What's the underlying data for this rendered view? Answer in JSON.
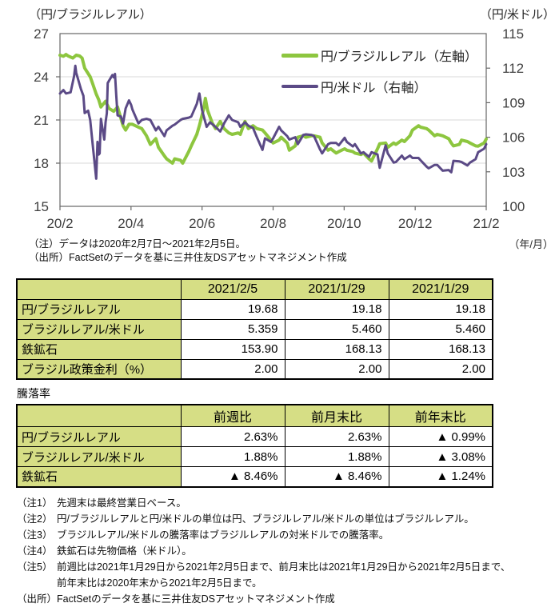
{
  "chart": {
    "left_axis_title": "（円/ブラジルレアル）",
    "right_axis_title": "（円/米ドル）",
    "x_unit_label": "（年/月）",
    "colors": {
      "jpy_brl_line": "#8dc63f",
      "jpy_usd_line": "#5b4a86",
      "gridline": "#d9d9d9",
      "frame": "#666666",
      "tick_text": "#3f3f3f",
      "table_header_bg": "#d6de85"
    }
  },
  "chart_data": {
    "type": "line",
    "title": "",
    "x_ticks": [
      "20/2",
      "20/4",
      "20/6",
      "20/8",
      "20/10",
      "20/12",
      "21/2"
    ],
    "x_range_note": "データは2020年2月7日～2021年2月5日",
    "left_axis": {
      "label": "（円/ブラジルレアル）",
      "min": 15,
      "max": 27,
      "ticks": [
        27,
        24,
        21,
        18,
        15
      ]
    },
    "right_axis": {
      "label": "（円/米ドル）",
      "min": 100,
      "max": 115,
      "ticks": [
        115,
        112,
        109,
        106,
        103,
        100
      ]
    },
    "grid": "horizontal-at-left-ticks-24-21-18",
    "legend_position": "inside-top-right",
    "series": [
      {
        "name": "円/ブラジルレアル（左軸）",
        "axis": "left",
        "color": "#8dc63f",
        "width": 4,
        "points": [
          [
            0,
            25.5
          ],
          [
            0.008,
            25.42
          ],
          [
            0.014,
            25.55
          ],
          [
            0.019,
            25.45
          ],
          [
            0.03,
            25.3
          ],
          [
            0.038,
            25.5
          ],
          [
            0.046,
            25.45
          ],
          [
            0.052,
            25.3
          ],
          [
            0.058,
            24.6
          ],
          [
            0.071,
            24.0
          ],
          [
            0.077,
            23.5
          ],
          [
            0.085,
            22.8
          ],
          [
            0.091,
            22.4
          ],
          [
            0.096,
            21.9
          ],
          [
            0.107,
            22.3
          ],
          [
            0.115,
            21.8
          ],
          [
            0.126,
            21.6
          ],
          [
            0.135,
            21.9
          ],
          [
            0.148,
            20.6
          ],
          [
            0.154,
            20.3
          ],
          [
            0.162,
            20.7
          ],
          [
            0.17,
            20.7
          ],
          [
            0.184,
            20.5
          ],
          [
            0.192,
            20.4
          ],
          [
            0.203,
            19.9
          ],
          [
            0.212,
            19.3
          ],
          [
            0.225,
            19.7
          ],
          [
            0.231,
            19.1
          ],
          [
            0.245,
            18.5
          ],
          [
            0.25,
            18.3
          ],
          [
            0.264,
            18.0
          ],
          [
            0.269,
            18.3
          ],
          [
            0.283,
            18.2
          ],
          [
            0.288,
            18.0
          ],
          [
            0.302,
            18.8
          ],
          [
            0.308,
            19.2
          ],
          [
            0.321,
            20.0
          ],
          [
            0.327,
            20.6
          ],
          [
            0.338,
            21.9
          ],
          [
            0.341,
            22.5
          ],
          [
            0.346,
            21.7
          ],
          [
            0.357,
            20.8
          ],
          [
            0.365,
            20.4
          ],
          [
            0.376,
            20.9
          ],
          [
            0.385,
            20.4
          ],
          [
            0.396,
            20.1
          ],
          [
            0.404,
            20.0
          ],
          [
            0.418,
            20.1
          ],
          [
            0.423,
            20.0
          ],
          [
            0.434,
            20.9
          ],
          [
            0.442,
            20.4
          ],
          [
            0.453,
            20.6
          ],
          [
            0.462,
            20.4
          ],
          [
            0.475,
            20.3
          ],
          [
            0.481,
            20.1
          ],
          [
            0.495,
            19.6
          ],
          [
            0.5,
            19.4
          ],
          [
            0.514,
            19.6
          ],
          [
            0.519,
            19.8
          ],
          [
            0.533,
            19.4
          ],
          [
            0.538,
            18.9
          ],
          [
            0.552,
            19.2
          ],
          [
            0.558,
            19.8
          ],
          [
            0.571,
            19.9
          ],
          [
            0.577,
            19.8
          ],
          [
            0.59,
            19.9
          ],
          [
            0.596,
            19.9
          ],
          [
            0.61,
            19.8
          ],
          [
            0.615,
            19.4
          ],
          [
            0.629,
            18.9
          ],
          [
            0.635,
            19.0
          ],
          [
            0.648,
            18.7
          ],
          [
            0.654,
            18.8
          ],
          [
            0.668,
            19.0
          ],
          [
            0.673,
            18.9
          ],
          [
            0.687,
            18.8
          ],
          [
            0.692,
            18.7
          ],
          [
            0.706,
            18.6
          ],
          [
            0.712,
            18.7
          ],
          [
            0.725,
            18.3
          ],
          [
            0.731,
            18.15
          ],
          [
            0.745,
            19.0
          ],
          [
            0.75,
            19.35
          ],
          [
            0.764,
            19.4
          ],
          [
            0.769,
            19.1
          ],
          [
            0.783,
            19.4
          ],
          [
            0.788,
            19.3
          ],
          [
            0.802,
            19.6
          ],
          [
            0.808,
            19.5
          ],
          [
            0.821,
            19.9
          ],
          [
            0.827,
            20.3
          ],
          [
            0.841,
            20.6
          ],
          [
            0.846,
            20.5
          ],
          [
            0.86,
            20.4
          ],
          [
            0.865,
            20.3
          ],
          [
            0.879,
            19.9
          ],
          [
            0.885,
            20.0
          ],
          [
            0.898,
            19.9
          ],
          [
            0.912,
            19.7
          ],
          [
            0.918,
            19.4
          ],
          [
            0.923,
            19.2
          ],
          [
            0.937,
            19.3
          ],
          [
            0.942,
            19.6
          ],
          [
            0.956,
            19.5
          ],
          [
            0.962,
            19.4
          ],
          [
            0.975,
            19.2
          ],
          [
            0.981,
            19.18
          ],
          [
            0.995,
            19.4
          ],
          [
            1,
            19.68
          ]
        ]
      },
      {
        "name": "円/米ドル（右軸）",
        "axis": "right",
        "color": "#5b4a86",
        "width": 3,
        "points": [
          [
            0,
            109.8
          ],
          [
            0.008,
            110.1
          ],
          [
            0.014,
            109.8
          ],
          [
            0.025,
            109.9
          ],
          [
            0.033,
            111.3
          ],
          [
            0.036,
            112.2
          ],
          [
            0.038,
            111.6
          ],
          [
            0.049,
            110.2
          ],
          [
            0.055,
            109.6
          ],
          [
            0.058,
            108.1
          ],
          [
            0.066,
            108.3
          ],
          [
            0.071,
            107.5
          ],
          [
            0.077,
            105.3
          ],
          [
            0.085,
            102.4
          ],
          [
            0.088,
            105.6
          ],
          [
            0.091,
            104.5
          ],
          [
            0.093,
            104.6
          ],
          [
            0.096,
            107.6
          ],
          [
            0.104,
            105.8
          ],
          [
            0.107,
            107.3
          ],
          [
            0.11,
            108.1
          ],
          [
            0.112,
            110.7
          ],
          [
            0.115,
            110.9
          ],
          [
            0.123,
            111.4
          ],
          [
            0.126,
            111.2
          ],
          [
            0.129,
            111.5
          ],
          [
            0.132,
            109.6
          ],
          [
            0.135,
            107.9
          ],
          [
            0.143,
            107.8
          ],
          [
            0.148,
            107.2
          ],
          [
            0.154,
            108.5
          ],
          [
            0.162,
            109.2
          ],
          [
            0.167,
            108.8
          ],
          [
            0.17,
            108.4
          ],
          [
            0.184,
            107.2
          ],
          [
            0.192,
            107.5
          ],
          [
            0.203,
            107.6
          ],
          [
            0.212,
            107.5
          ],
          [
            0.225,
            106.6
          ],
          [
            0.231,
            106.9
          ],
          [
            0.245,
            106.1
          ],
          [
            0.25,
            106.6
          ],
          [
            0.264,
            107.0
          ],
          [
            0.269,
            107.1
          ],
          [
            0.283,
            107.5
          ],
          [
            0.288,
            107.6
          ],
          [
            0.302,
            107.7
          ],
          [
            0.308,
            107.8
          ],
          [
            0.321,
            108.9
          ],
          [
            0.327,
            109.8
          ],
          [
            0.333,
            108.4
          ],
          [
            0.338,
            107.7
          ],
          [
            0.344,
            106.9
          ],
          [
            0.352,
            107.3
          ],
          [
            0.365,
            106.9
          ],
          [
            0.376,
            106.5
          ],
          [
            0.385,
            107.2
          ],
          [
            0.396,
            107.9
          ],
          [
            0.404,
            107.5
          ],
          [
            0.418,
            107.3
          ],
          [
            0.423,
            106.9
          ],
          [
            0.434,
            107.3
          ],
          [
            0.442,
            107.0
          ],
          [
            0.453,
            106.8
          ],
          [
            0.462,
            106.0
          ],
          [
            0.475,
            104.9
          ],
          [
            0.481,
            105.9
          ],
          [
            0.495,
            105.6
          ],
          [
            0.5,
            105.9
          ],
          [
            0.514,
            106.9
          ],
          [
            0.519,
            106.6
          ],
          [
            0.533,
            106.1
          ],
          [
            0.538,
            105.8
          ],
          [
            0.552,
            106.0
          ],
          [
            0.558,
            105.4
          ],
          [
            0.571,
            106.2
          ],
          [
            0.577,
            106.25
          ],
          [
            0.59,
            106.2
          ],
          [
            0.596,
            106.1
          ],
          [
            0.61,
            104.95
          ],
          [
            0.615,
            104.6
          ],
          [
            0.629,
            105.4
          ],
          [
            0.635,
            105.5
          ],
          [
            0.648,
            105.5
          ],
          [
            0.654,
            105.3
          ],
          [
            0.668,
            105.95
          ],
          [
            0.673,
            105.6
          ],
          [
            0.687,
            105.2
          ],
          [
            0.692,
            105.4
          ],
          [
            0.706,
            104.6
          ],
          [
            0.712,
            104.7
          ],
          [
            0.725,
            104.3
          ],
          [
            0.731,
            104.7
          ],
          [
            0.745,
            104.5
          ],
          [
            0.75,
            103.35
          ],
          [
            0.764,
            105.3
          ],
          [
            0.769,
            104.6
          ],
          [
            0.783,
            103.8
          ],
          [
            0.788,
            103.85
          ],
          [
            0.802,
            104.4
          ],
          [
            0.808,
            104.1
          ],
          [
            0.821,
            104.4
          ],
          [
            0.827,
            104.2
          ],
          [
            0.841,
            104.2
          ],
          [
            0.846,
            104.0
          ],
          [
            0.86,
            103.45
          ],
          [
            0.865,
            103.3
          ],
          [
            0.879,
            103.6
          ],
          [
            0.885,
            103.6
          ],
          [
            0.898,
            103.1
          ],
          [
            0.912,
            103.15
          ],
          [
            0.918,
            102.96
          ],
          [
            0.923,
            103.95
          ],
          [
            0.937,
            103.9
          ],
          [
            0.942,
            103.85
          ],
          [
            0.956,
            103.55
          ],
          [
            0.962,
            103.8
          ],
          [
            0.975,
            104.1
          ],
          [
            0.981,
            104.7
          ],
          [
            0.995,
            105.0
          ],
          [
            1,
            105.39
          ]
        ]
      }
    ]
  },
  "notes_top": [
    {
      "prefix": "（注）",
      "text": "データは2020年2月7日～2021年2月5日。"
    },
    {
      "prefix": "（出所）",
      "text": "FactSetのデータを基に三井住友DSアセットマネジメント作成"
    }
  ],
  "tables": {
    "levels_table": {
      "headers": [
        "",
        "2021/2/5",
        "2021/1/29",
        "2021/1/29"
      ],
      "rows": [
        {
          "label": "円/ブラジルレアル",
          "values": [
            "19.68",
            "19.18",
            "19.18"
          ]
        },
        {
          "label": "ブラジルレアル/米ドル",
          "values": [
            "5.359",
            "5.460",
            "5.460"
          ]
        },
        {
          "label": "鉄鉱石",
          "values": [
            "153.90",
            "168.13",
            "168.13"
          ]
        },
        {
          "label": "ブラジル政策金利（%）",
          "values": [
            "2.00",
            "2.00",
            "2.00"
          ]
        }
      ]
    },
    "change_table": {
      "title": "騰落率",
      "headers": [
        "",
        "前週比",
        "前月末比",
        "前年末比"
      ],
      "rows": [
        {
          "label": "円/ブラジルレアル",
          "values": [
            "2.63%",
            "2.63%",
            "▲ 0.99%"
          ]
        },
        {
          "label": "ブラジルレアル/米ドル",
          "values": [
            "1.88%",
            "1.88%",
            "▲ 3.08%"
          ]
        },
        {
          "label": "鉄鉱石",
          "values": [
            "▲ 8.46%",
            "▲ 8.46%",
            "▲ 1.24%"
          ]
        }
      ]
    }
  },
  "notes_bottom": [
    {
      "prefix": "（注1）",
      "lines": [
        "先週末は最終営業日ベース。"
      ]
    },
    {
      "prefix": "（注2）",
      "lines": [
        "円/ブラジルレアルと円/米ドルの単位は円、ブラジルレアル/米ドルの単位はブラジルレアル。"
      ]
    },
    {
      "prefix": "（注3）",
      "lines": [
        "ブラジルレアル/米ドルの騰落率はブラジルレアルの対米ドルでの騰落率。"
      ]
    },
    {
      "prefix": "（注4）",
      "lines": [
        "鉄鉱石は先物価格（米ドル）。"
      ]
    },
    {
      "prefix": "（注5）",
      "lines": [
        "前週比は2021年1月29日から2021年2月5日まで、前月末比は2021年1月29日から2021年2月5日まで、",
        "前年末比は2020年末から2021年2月5日まで。"
      ]
    },
    {
      "prefix": "（出所）",
      "lines": [
        "FactSetのデータを基に三井住友DSアセットマネジメント作成"
      ]
    }
  ]
}
